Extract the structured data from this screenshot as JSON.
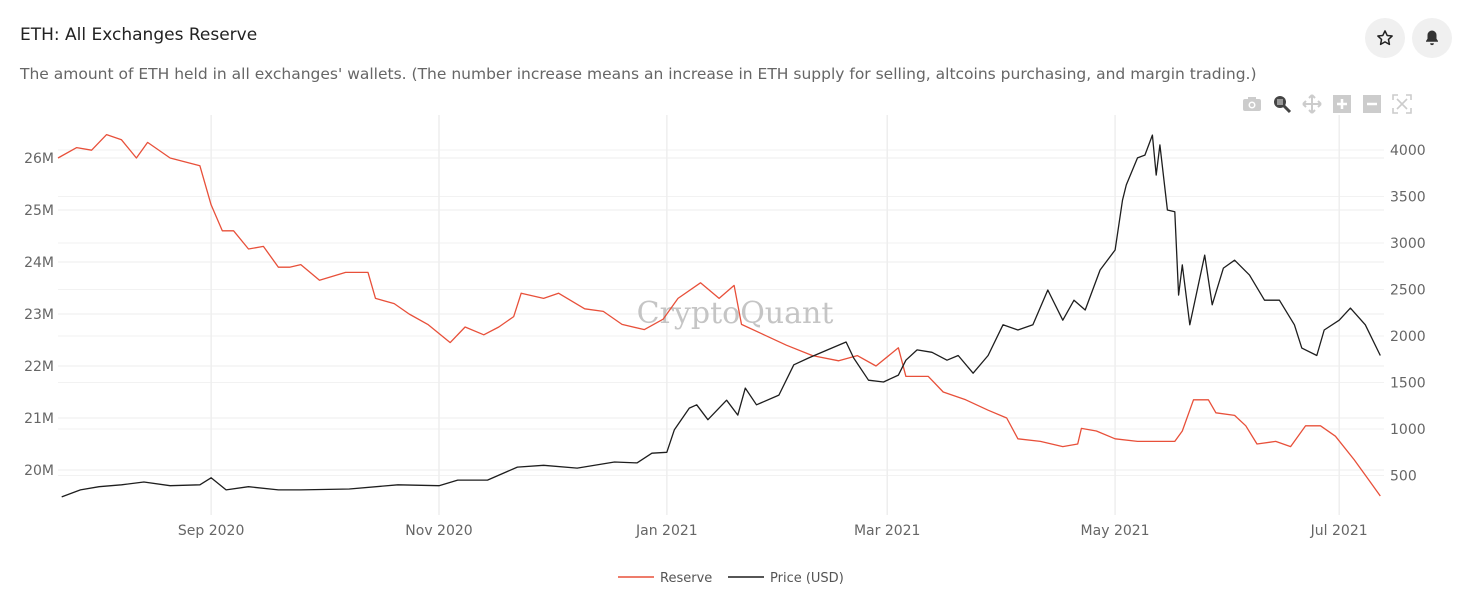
{
  "header": {
    "title": "ETH: All Exchanges Reserve",
    "subtitle": "The amount of ETH held in all exchanges' wallets. (The number increase means an increase in ETH supply for selling, altcoins purchasing, and margin trading.)",
    "watermark": "CryptoQuant"
  },
  "toolbar": [
    "camera-icon",
    "zoom-icon",
    "pan-icon",
    "zoom-in-icon",
    "zoom-out-icon",
    "autoscale-icon"
  ],
  "chart_data": {
    "type": "line",
    "title": "ETH: All Exchanges Reserve",
    "x_start": "2020-07-22",
    "x_unit": "days since x_start",
    "xlim": [
      0,
      355
    ],
    "x_ticks": [
      {
        "day": 41,
        "label": "Sep 2020"
      },
      {
        "day": 102,
        "label": "Nov 2020"
      },
      {
        "day": 163,
        "label": "Jan 2021"
      },
      {
        "day": 222,
        "label": "Mar 2021"
      },
      {
        "day": 283,
        "label": "May 2021"
      },
      {
        "day": 343,
        "label": "Jul 2021"
      }
    ],
    "y_left": {
      "label": "Reserve",
      "unit": "M ETH",
      "ticks": [
        20,
        21,
        22,
        23,
        24,
        25,
        26
      ],
      "tick_labels": [
        "20M",
        "21M",
        "22M",
        "23M",
        "24M",
        "25M",
        "26M"
      ],
      "range": [
        19.4,
        26.9
      ]
    },
    "y_right": {
      "label": "Price (USD)",
      "ticks": [
        500,
        1000,
        1500,
        2000,
        2500,
        3000,
        3500,
        4000
      ],
      "tick_labels": [
        "500",
        "1000",
        "1500",
        "2000",
        "2500",
        "3000",
        "3500",
        "4000"
      ],
      "range": [
        150,
        4310
      ]
    },
    "legend_position": "bottom-center",
    "series": [
      {
        "name": "Reserve",
        "axis": "left",
        "color": "#e8503a",
        "points": [
          [
            0,
            26.0
          ],
          [
            5,
            26.2
          ],
          [
            9,
            26.15
          ],
          [
            13,
            26.45
          ],
          [
            17,
            26.35
          ],
          [
            21,
            26.0
          ],
          [
            24,
            26.3
          ],
          [
            30,
            26.0
          ],
          [
            38,
            25.85
          ],
          [
            41,
            25.1
          ],
          [
            44,
            24.6
          ],
          [
            47,
            24.6
          ],
          [
            51,
            24.25
          ],
          [
            55,
            24.3
          ],
          [
            59,
            23.9
          ],
          [
            62,
            23.9
          ],
          [
            65,
            23.95
          ],
          [
            70,
            23.65
          ],
          [
            77,
            23.8
          ],
          [
            83,
            23.8
          ],
          [
            85,
            23.3
          ],
          [
            90,
            23.2
          ],
          [
            94,
            23.0
          ],
          [
            99,
            22.8
          ],
          [
            105,
            22.45
          ],
          [
            109,
            22.75
          ],
          [
            114,
            22.6
          ],
          [
            118,
            22.75
          ],
          [
            122,
            22.95
          ],
          [
            124,
            23.4
          ],
          [
            130,
            23.3
          ],
          [
            134,
            23.4
          ],
          [
            141,
            23.1
          ],
          [
            146,
            23.05
          ],
          [
            151,
            22.8
          ],
          [
            157,
            22.7
          ],
          [
            162,
            22.9
          ],
          [
            166,
            23.3
          ],
          [
            172,
            23.6
          ],
          [
            177,
            23.3
          ],
          [
            181,
            23.55
          ],
          [
            183,
            22.8
          ],
          [
            189,
            22.6
          ],
          [
            195,
            22.4
          ],
          [
            202,
            22.2
          ],
          [
            209,
            22.1
          ],
          [
            214,
            22.2
          ],
          [
            219,
            22.0
          ],
          [
            225,
            22.35
          ],
          [
            227,
            21.8
          ],
          [
            233,
            21.8
          ],
          [
            237,
            21.5
          ],
          [
            243,
            21.35
          ],
          [
            249,
            21.15
          ],
          [
            254,
            21.0
          ],
          [
            257,
            20.6
          ],
          [
            263,
            20.55
          ],
          [
            269,
            20.45
          ],
          [
            273,
            20.5
          ],
          [
            274,
            20.8
          ],
          [
            278,
            20.75
          ],
          [
            283,
            20.6
          ],
          [
            289,
            20.55
          ],
          [
            294,
            20.55
          ],
          [
            299,
            20.55
          ],
          [
            301,
            20.75
          ],
          [
            304,
            21.35
          ],
          [
            308,
            21.35
          ],
          [
            310,
            21.1
          ],
          [
            315,
            21.05
          ],
          [
            318,
            20.85
          ],
          [
            321,
            20.5
          ],
          [
            326,
            20.55
          ],
          [
            330,
            20.45
          ],
          [
            334,
            20.85
          ],
          [
            338,
            20.85
          ],
          [
            342,
            20.65
          ],
          [
            347,
            20.2
          ],
          [
            351,
            19.8
          ],
          [
            354,
            19.5
          ]
        ]
      },
      {
        "name": "Price (USD)",
        "axis": "right",
        "color": "#1e1e1e",
        "points": [
          [
            1,
            270
          ],
          [
            6,
            345
          ],
          [
            11,
            380
          ],
          [
            17,
            400
          ],
          [
            23,
            430
          ],
          [
            30,
            390
          ],
          [
            38,
            400
          ],
          [
            41,
            475
          ],
          [
            45,
            345
          ],
          [
            51,
            380
          ],
          [
            59,
            345
          ],
          [
            65,
            345
          ],
          [
            78,
            355
          ],
          [
            91,
            400
          ],
          [
            102,
            390
          ],
          [
            107,
            450
          ],
          [
            115,
            450
          ],
          [
            123,
            590
          ],
          [
            130,
            610
          ],
          [
            139,
            580
          ],
          [
            149,
            645
          ],
          [
            155,
            635
          ],
          [
            159,
            740
          ],
          [
            163,
            750
          ],
          [
            165,
            990
          ],
          [
            169,
            1225
          ],
          [
            171,
            1260
          ],
          [
            174,
            1100
          ],
          [
            179,
            1310
          ],
          [
            182,
            1150
          ],
          [
            184,
            1440
          ],
          [
            187,
            1260
          ],
          [
            193,
            1365
          ],
          [
            197,
            1690
          ],
          [
            201,
            1765
          ],
          [
            206,
            1850
          ],
          [
            211,
            1935
          ],
          [
            213,
            1765
          ],
          [
            217,
            1525
          ],
          [
            221,
            1505
          ],
          [
            225,
            1580
          ],
          [
            227,
            1740
          ],
          [
            230,
            1850
          ],
          [
            234,
            1825
          ],
          [
            238,
            1740
          ],
          [
            241,
            1790
          ],
          [
            245,
            1600
          ],
          [
            249,
            1790
          ],
          [
            253,
            2120
          ],
          [
            257,
            2065
          ],
          [
            261,
            2120
          ],
          [
            265,
            2495
          ],
          [
            269,
            2170
          ],
          [
            272,
            2385
          ],
          [
            275,
            2280
          ],
          [
            279,
            2710
          ],
          [
            283,
            2925
          ],
          [
            285,
            3460
          ],
          [
            286,
            3625
          ],
          [
            289,
            3915
          ],
          [
            291,
            3945
          ],
          [
            293,
            4160
          ],
          [
            294,
            3730
          ],
          [
            295,
            4055
          ],
          [
            297,
            3355
          ],
          [
            299,
            3335
          ],
          [
            300,
            2440
          ],
          [
            301,
            2765
          ],
          [
            303,
            2120
          ],
          [
            307,
            2870
          ],
          [
            309,
            2335
          ],
          [
            312,
            2730
          ],
          [
            315,
            2815
          ],
          [
            319,
            2655
          ],
          [
            323,
            2385
          ],
          [
            327,
            2385
          ],
          [
            331,
            2120
          ],
          [
            333,
            1870
          ],
          [
            337,
            1790
          ],
          [
            339,
            2065
          ],
          [
            343,
            2170
          ],
          [
            346,
            2300
          ],
          [
            350,
            2120
          ],
          [
            354,
            1790
          ]
        ]
      }
    ]
  }
}
